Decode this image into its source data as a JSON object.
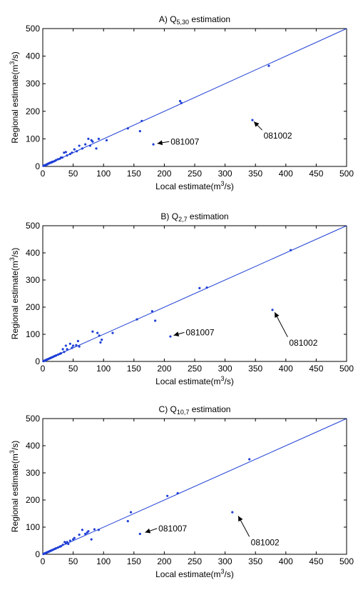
{
  "chart_data": [
    {
      "type": "scatter",
      "title_prefix": "A) Q",
      "title_sub": "5,30",
      "title_suffix": " estimation",
      "xlabel_prefix": "Local estimate(m",
      "xlabel_sup": "3",
      "xlabel_suffix": "/s)",
      "ylabel_prefix": "Regional estimate(m",
      "ylabel_sup": "3",
      "ylabel_suffix": "/s)",
      "xlim": [
        0,
        500
      ],
      "ylim": [
        0,
        500
      ],
      "xticks": [
        0,
        50,
        100,
        150,
        200,
        250,
        300,
        350,
        400,
        450,
        500
      ],
      "yticks": [
        0,
        100,
        200,
        300,
        400,
        500
      ],
      "grid": false,
      "series": [
        {
          "x": [
            1,
            2,
            3,
            4,
            5,
            6,
            7,
            8,
            9,
            10,
            11,
            12,
            13,
            14,
            15,
            16,
            18,
            20,
            22,
            25,
            28,
            30,
            32,
            35,
            38,
            40,
            45,
            48,
            52,
            56,
            60,
            65,
            70,
            75,
            78,
            80,
            82,
            88,
            92,
            105,
            140,
            160,
            163,
            182,
            226,
            228,
            345,
            372
          ],
          "y": [
            2,
            3,
            4,
            5,
            5,
            7,
            7,
            9,
            10,
            11,
            12,
            13,
            14,
            15,
            15,
            17,
            18,
            20,
            23,
            26,
            28,
            32,
            32,
            50,
            52,
            40,
            45,
            50,
            62,
            55,
            75,
            65,
            80,
            100,
            75,
            95,
            90,
            65,
            100,
            95,
            138,
            128,
            165,
            80,
            237,
            230,
            168,
            365
          ]
        }
      ],
      "fit_line": {
        "x": [
          0,
          500
        ],
        "y": [
          0,
          500
        ]
      },
      "annotations": [
        {
          "text": "081007",
          "point": [
            185,
            82
          ],
          "label_at": [
            208,
            90
          ]
        },
        {
          "text": "081002",
          "point": [
            345,
            168
          ],
          "label_at": [
            361,
            132
          ]
        }
      ]
    },
    {
      "type": "scatter",
      "title_prefix": "B) Q",
      "title_sub": "2,7",
      "title_suffix": " estimation",
      "xlabel_prefix": "Local estimate(m",
      "xlabel_sup": "3",
      "xlabel_suffix": "/s)",
      "ylabel_prefix": "Regional estimate(m",
      "ylabel_sup": "3",
      "ylabel_suffix": "/s)",
      "xlim": [
        0,
        500
      ],
      "ylim": [
        0,
        500
      ],
      "xticks": [
        0,
        50,
        100,
        150,
        200,
        250,
        300,
        350,
        400,
        450,
        500
      ],
      "yticks": [
        0,
        100,
        200,
        300,
        400,
        500
      ],
      "grid": false,
      "series": [
        {
          "x": [
            1,
            2,
            3,
            4,
            5,
            6,
            7,
            8,
            9,
            10,
            11,
            12,
            13,
            14,
            15,
            16,
            18,
            20,
            22,
            25,
            28,
            30,
            33,
            35,
            38,
            40,
            45,
            48,
            50,
            55,
            58,
            60,
            82,
            90,
            93,
            95,
            97,
            115,
            155,
            180,
            185,
            210,
            258,
            270,
            378,
            408
          ],
          "y": [
            1,
            2,
            3,
            4,
            5,
            6,
            7,
            8,
            9,
            10,
            11,
            12,
            13,
            14,
            15,
            16,
            18,
            20,
            22,
            25,
            28,
            30,
            45,
            35,
            58,
            45,
            65,
            50,
            58,
            60,
            75,
            55,
            110,
            105,
            95,
            70,
            80,
            105,
            155,
            185,
            150,
            92,
            270,
            272,
            190,
            410
          ]
        }
      ],
      "fit_line": {
        "x": [
          0,
          500
        ],
        "y": [
          0,
          500
        ]
      },
      "annotations": [
        {
          "text": "081007",
          "point": [
            212,
            94
          ],
          "label_at": [
            233,
            107
          ]
        },
        {
          "text": "081002",
          "point": [
            380,
            188
          ],
          "label_at": [
            403,
            90
          ]
        }
      ]
    },
    {
      "type": "scatter",
      "title_prefix": "C) Q",
      "title_sub": "10,7",
      "title_suffix": " estimation",
      "xlabel_prefix": "Local estimate(m",
      "xlabel_sup": "3",
      "xlabel_suffix": "/s)",
      "ylabel_prefix": "Regional estimate(m",
      "ylabel_sup": "3",
      "ylabel_suffix": "/s)",
      "xlim": [
        0,
        500
      ],
      "ylim": [
        0,
        500
      ],
      "xticks": [
        0,
        50,
        100,
        150,
        200,
        250,
        300,
        350,
        400,
        450,
        500
      ],
      "yticks": [
        0,
        100,
        200,
        300,
        400,
        500
      ],
      "grid": false,
      "series": [
        {
          "x": [
            1,
            2,
            3,
            4,
            5,
            6,
            7,
            8,
            9,
            10,
            11,
            12,
            13,
            14,
            15,
            16,
            18,
            20,
            22,
            25,
            28,
            30,
            33,
            36,
            38,
            40,
            42,
            45,
            50,
            52,
            60,
            65,
            70,
            73,
            75,
            80,
            85,
            92,
            140,
            145,
            160,
            205,
            222,
            312,
            340
          ],
          "y": [
            1,
            2,
            3,
            4,
            5,
            6,
            7,
            8,
            9,
            10,
            11,
            12,
            13,
            14,
            15,
            16,
            18,
            20,
            22,
            25,
            28,
            30,
            35,
            45,
            40,
            45,
            38,
            50,
            55,
            60,
            72,
            90,
            75,
            80,
            85,
            55,
            92,
            90,
            122,
            155,
            75,
            215,
            225,
            155,
            350
          ]
        }
      ],
      "fit_line": {
        "x": [
          0,
          500
        ],
        "y": [
          0,
          500
        ]
      },
      "annotations": [
        {
          "text": "081007",
          "point": [
            165,
            78
          ],
          "label_at": [
            188,
            95
          ]
        },
        {
          "text": "081002",
          "point": [
            320,
            148
          ],
          "label_at": [
            340,
            65
          ]
        }
      ]
    }
  ]
}
